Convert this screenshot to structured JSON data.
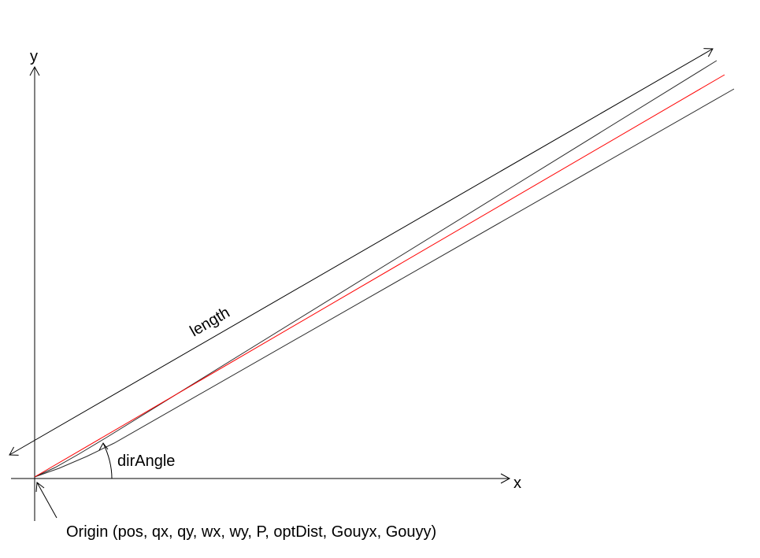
{
  "labels": {
    "x_axis": "x",
    "y_axis": "y",
    "length": "length",
    "dir_angle": "dirAngle",
    "origin": "Origin (pos, qx, qy, wx, wy, P, optDist, Gouyx, Gouyy)"
  },
  "colors": {
    "axes": "#000000",
    "beam_center": "#ff0000",
    "beam_edges": "#2b2b2b",
    "background": "#ffffff"
  }
}
